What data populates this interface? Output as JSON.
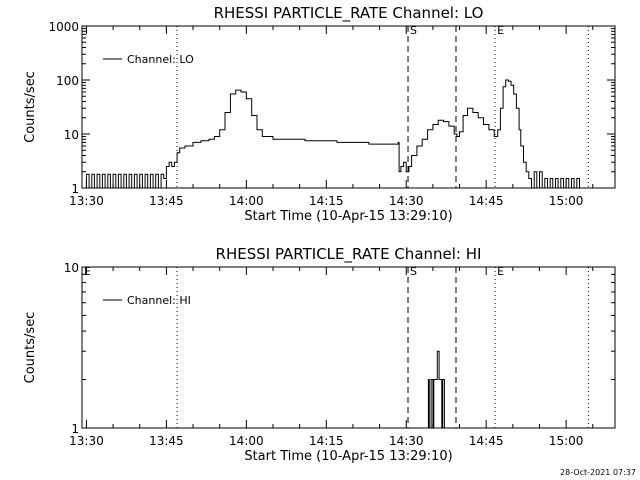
{
  "footer": {
    "timestamp": "28-Oct-2021 07:37"
  },
  "chart_data": [
    {
      "type": "line",
      "title": "RHESSI PARTICLE_RATE Channel: LO",
      "xlabel": "Start Time (10-Apr-15 13:29:10)",
      "ylabel": "Counts/sec",
      "yscale": "log",
      "ylim": [
        1,
        1000
      ],
      "yticks": [
        {
          "value": 1,
          "label": "1"
        },
        {
          "value": 10,
          "label": "10"
        },
        {
          "value": 100,
          "label": "100"
        },
        {
          "value": 1000,
          "label": "1000"
        }
      ],
      "xlim_minutes": [
        13.5,
        13.5,
        15.15
      ],
      "xlim": [
        "13:29:10",
        "15:09:10"
      ],
      "xticks": [
        "13:30",
        "13:45",
        "14:00",
        "14:15",
        "14:30",
        "14:45",
        "15:00"
      ],
      "legend": {
        "position": "top-left",
        "label": "Channel: LO"
      },
      "markers": [
        {
          "time": "13:47:00",
          "style": "dotted",
          "label": ""
        },
        {
          "time": "14:30:20",
          "style": "dashed",
          "label": "S"
        },
        {
          "time": "14:39:20",
          "style": "dashed",
          "label": ""
        },
        {
          "time": "14:46:40",
          "style": "dotted",
          "label": "E"
        },
        {
          "time": "15:04:10",
          "style": "dotted",
          "label": ""
        }
      ],
      "series": [
        {
          "x": [
            "13:29:10",
            "13:30:00",
            "13:30:30",
            "13:31:00",
            "13:31:30",
            "13:32:00",
            "13:32:30",
            "13:33:00",
            "13:33:30",
            "13:34:00",
            "13:34:30",
            "13:35:00",
            "13:35:30",
            "13:36:00",
            "13:36:30",
            "13:37:00",
            "13:37:30",
            "13:38:00",
            "13:38:30",
            "13:39:00",
            "13:39:30",
            "13:40:00",
            "13:40:30",
            "13:41:00",
            "13:41:30",
            "13:42:00",
            "13:42:30",
            "13:43:00",
            "13:43:30",
            "13:44:00",
            "13:44:30",
            "13:45:00",
            "13:45:30",
            "13:46:00",
            "13:46:30",
            "13:47:00",
            "13:47:30",
            "13:48:30",
            "13:50:00",
            "13:51:30",
            "13:53:00",
            "13:54:00",
            "13:55:00",
            "13:56:00",
            "13:57:00",
            "13:58:00",
            "13:59:00",
            "14:00:00",
            "14:01:00",
            "14:02:00",
            "14:03:00",
            "14:05:00",
            "14:08:00",
            "14:11:00",
            "14:14:00",
            "14:17:00",
            "14:20:00",
            "14:23:00",
            "14:26:00",
            "14:28:30",
            "14:28:40",
            "14:29:00",
            "14:29:30",
            "14:30:00",
            "14:30:30",
            "14:31:00",
            "14:32:00",
            "14:33:00",
            "14:34:00",
            "14:35:00",
            "14:36:00",
            "14:37:00",
            "14:38:00",
            "14:39:00",
            "14:39:30",
            "14:40:00",
            "14:40:40",
            "14:41:30",
            "14:42:30",
            "14:43:30",
            "14:44:30",
            "14:45:30",
            "14:46:30",
            "14:47:10",
            "14:47:40",
            "14:48:10",
            "14:48:40",
            "14:49:10",
            "14:49:40",
            "14:50:10",
            "14:50:40",
            "14:51:10",
            "14:51:30",
            "14:52:00",
            "14:52:30",
            "14:53:00",
            "14:53:30",
            "14:54:00",
            "14:54:30",
            "14:55:00",
            "14:55:30",
            "14:56:00",
            "14:56:30",
            "14:57:00",
            "14:57:30",
            "14:58:00",
            "14:58:30",
            "14:59:00",
            "14:59:30",
            "15:00:00",
            "15:00:30",
            "15:01:00",
            "15:01:30",
            "15:02:00",
            "15:02:30",
            "15:03:00",
            "15:03:30",
            "15:04:00",
            "15:04:30"
          ],
          "values": [
            1,
            1.8,
            1,
            1.8,
            1,
            1.8,
            1,
            1.8,
            1,
            1.8,
            1,
            1.8,
            1,
            1.8,
            1,
            1.8,
            1,
            1.8,
            1,
            1.8,
            1,
            1.8,
            1,
            1.8,
            1,
            1.8,
            1,
            1.8,
            1,
            1.8,
            1.5,
            2.5,
            3,
            2.5,
            3,
            4.5,
            5.5,
            6,
            7,
            7.5,
            8,
            9,
            12,
            25,
            55,
            65,
            60,
            45,
            22,
            12,
            9,
            8,
            8,
            7.5,
            7.5,
            7,
            7,
            6.5,
            6.5,
            7,
            2,
            2.5,
            3,
            2,
            2.5,
            4,
            6,
            8,
            12,
            15,
            18,
            17,
            14,
            10,
            9,
            11,
            22,
            30,
            25,
            20,
            15,
            12,
            9,
            12,
            30,
            75,
            100,
            95,
            80,
            55,
            30,
            12,
            6,
            3,
            2,
            1.5,
            1,
            2,
            1,
            2,
            1,
            1.5,
            1,
            1.5,
            1,
            1.5,
            1,
            1.5,
            1,
            1.5,
            1,
            1.5,
            1,
            1.5,
            1,
            1,
            1,
            1,
            1
          ]
        }
      ]
    },
    {
      "type": "line",
      "title": "RHESSI PARTICLE_RATE Channel: HI",
      "xlabel": "Start Time (10-Apr-15 13:29:10)",
      "ylabel": "Counts/sec",
      "yscale": "log",
      "ylim": [
        1,
        10
      ],
      "yticks": [
        {
          "value": 1,
          "label": "1"
        },
        {
          "value": 10,
          "label": "10"
        }
      ],
      "xlim": [
        "13:29:10",
        "15:09:10"
      ],
      "xticks": [
        "13:30",
        "13:45",
        "14:00",
        "14:15",
        "14:30",
        "14:45",
        "15:00"
      ],
      "legend": {
        "position": "top-left",
        "label": "Channel: HI"
      },
      "markers": [
        {
          "time": "13:29:10",
          "style": "none",
          "label": "E"
        },
        {
          "time": "13:47:00",
          "style": "dotted",
          "label": ""
        },
        {
          "time": "14:30:20",
          "style": "dashed",
          "label": "S"
        },
        {
          "time": "14:39:20",
          "style": "dashed",
          "label": ""
        },
        {
          "time": "14:46:40",
          "style": "dotted",
          "label": "E"
        },
        {
          "time": "15:04:10",
          "style": "dotted",
          "label": ""
        }
      ],
      "series": [
        {
          "x": [
            "14:33:50",
            "14:34:10",
            "14:34:20",
            "14:34:40",
            "14:35:00",
            "14:35:10",
            "14:35:30",
            "14:35:50",
            "14:36:10",
            "14:36:20",
            "14:36:40",
            "14:36:50",
            "14:37:10",
            "14:37:30"
          ],
          "values": [
            1,
            2,
            1,
            2,
            1,
            2,
            2,
            3,
            2,
            2,
            1,
            2,
            1,
            1
          ]
        }
      ]
    }
  ]
}
